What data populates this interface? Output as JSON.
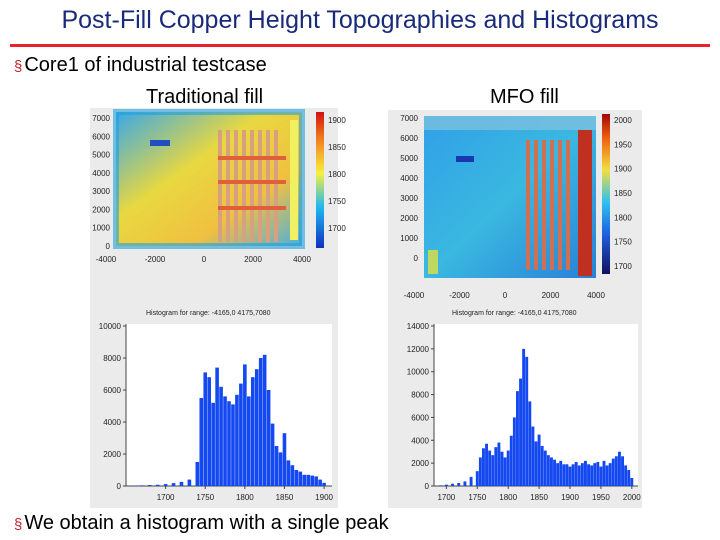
{
  "slide": {
    "title": "Post-Fill Copper Height Topographies and Histograms",
    "bullet1": "Core1 of industrial testcase",
    "bullet2": "We obtain a histogram with a single peak",
    "bullet_marker": "§",
    "left_label": "Traditional fill",
    "right_label": "MFO fill"
  },
  "colors": {
    "title": "#1a2a7a",
    "rule": "#e8212c",
    "bar": "#1448f0"
  },
  "maps": [
    {
      "x_ticks": [
        "-4000",
        "-2000",
        "0",
        "2000",
        "4000"
      ],
      "y_ticks": [
        "7000",
        "6000",
        "5000",
        "4000",
        "3000",
        "2000",
        "1000",
        "0"
      ],
      "cbar_ticks": [
        "1900",
        "1850",
        "1800",
        "1750",
        "1700"
      ]
    },
    {
      "x_ticks": [
        "-4000",
        "-2000",
        "0",
        "2000",
        "4000"
      ],
      "y_ticks": [
        "7000",
        "6000",
        "5000",
        "4000",
        "3000",
        "2000",
        "1000",
        "0"
      ],
      "cbar_ticks": [
        "2000",
        "1950",
        "1900",
        "1850",
        "1800",
        "1750",
        "1700"
      ]
    }
  ],
  "chart_data": [
    {
      "type": "bar",
      "title": "Histogram for range: -4165,0 4175,7080",
      "x_ticks": [
        "1700",
        "1750",
        "1800",
        "1850",
        "1900"
      ],
      "xlim": [
        1650,
        1910
      ],
      "y_ticks": [
        "10000",
        "8000",
        "6000",
        "4000",
        "2000",
        "0"
      ],
      "ylim": [
        0,
        10000
      ],
      "x": [
        1660,
        1670,
        1680,
        1690,
        1700,
        1710,
        1720,
        1730,
        1740,
        1745,
        1750,
        1755,
        1760,
        1765,
        1770,
        1775,
        1780,
        1785,
        1790,
        1795,
        1800,
        1805,
        1810,
        1815,
        1820,
        1825,
        1830,
        1835,
        1840,
        1845,
        1850,
        1855,
        1860,
        1865,
        1870,
        1875,
        1880,
        1885,
        1890,
        1895,
        1900
      ],
      "values": [
        20,
        40,
        60,
        80,
        120,
        180,
        260,
        400,
        1500,
        5500,
        7100,
        6800,
        5200,
        7400,
        6200,
        5600,
        5300,
        5100,
        5700,
        6400,
        7600,
        5600,
        6800,
        7300,
        8000,
        8200,
        6000,
        3900,
        2500,
        2100,
        3300,
        1600,
        1300,
        1000,
        900,
        700,
        700,
        650,
        600,
        400,
        200
      ]
    },
    {
      "type": "bar",
      "title": "Histogram for range: -4165,0 4175,7080",
      "x_ticks": [
        "1700",
        "1750",
        "1800",
        "1850",
        "1900",
        "1950",
        "2000"
      ],
      "xlim": [
        1680,
        2010
      ],
      "y_ticks": [
        "14000",
        "12000",
        "10000",
        "8000",
        "6000",
        "4000",
        "2000",
        "0"
      ],
      "ylim": [
        0,
        14000
      ],
      "x": [
        1690,
        1700,
        1710,
        1720,
        1730,
        1740,
        1750,
        1755,
        1760,
        1765,
        1770,
        1775,
        1780,
        1785,
        1790,
        1795,
        1800,
        1805,
        1810,
        1815,
        1820,
        1825,
        1830,
        1835,
        1840,
        1845,
        1850,
        1855,
        1860,
        1865,
        1870,
        1875,
        1880,
        1885,
        1890,
        1895,
        1900,
        1905,
        1910,
        1915,
        1920,
        1925,
        1930,
        1935,
        1940,
        1945,
        1950,
        1955,
        1960,
        1965,
        1970,
        1975,
        1980,
        1985,
        1990,
        1995,
        2000
      ],
      "values": [
        60,
        120,
        200,
        260,
        400,
        800,
        1300,
        2500,
        3300,
        3700,
        3100,
        2700,
        3400,
        3800,
        3000,
        2500,
        3100,
        4400,
        6000,
        8300,
        9400,
        12000,
        11300,
        7400,
        5200,
        3900,
        4500,
        3500,
        3100,
        2700,
        2500,
        2300,
        2000,
        2200,
        1900,
        1900,
        1700,
        1900,
        2100,
        1800,
        2000,
        2200,
        1900,
        1800,
        2000,
        2100,
        1700,
        2200,
        1800,
        2000,
        2400,
        2600,
        3000,
        2600,
        1800,
        1400,
        700
      ]
    }
  ]
}
